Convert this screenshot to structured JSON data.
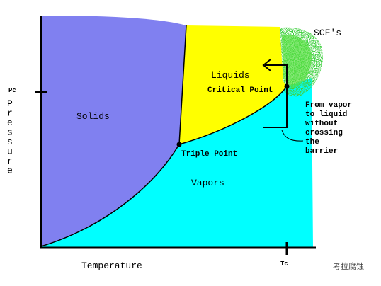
{
  "diagram": {
    "regions": {
      "scf": "SCF's",
      "liquids": "Liquids",
      "solids": "Solids",
      "vapors": "Vapors"
    },
    "points": {
      "critical": "Critical Point",
      "triple": "Triple Point"
    },
    "annotation": [
      "From vapor",
      "to liquid",
      "without",
      "crossing",
      "the",
      "barrier"
    ],
    "y_axis": {
      "label": [
        "P",
        "r",
        "e",
        "s",
        "s",
        "u",
        "r",
        "e"
      ],
      "tick": "Pc"
    },
    "x_axis": {
      "label": "Temperature",
      "tick": "Tc"
    },
    "watermark": "考拉腐蚀"
  }
}
